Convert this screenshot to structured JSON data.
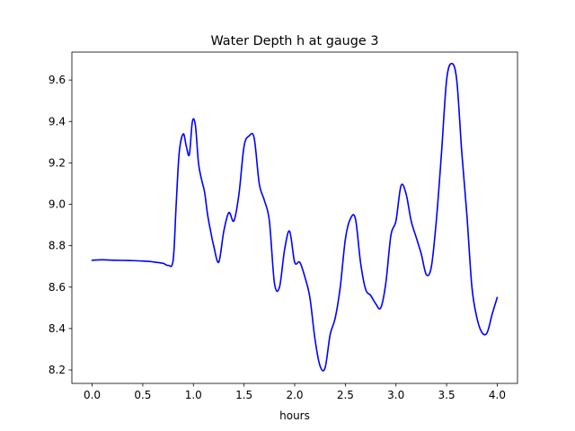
{
  "chart_data": {
    "type": "line",
    "title": "Water Depth h at gauge 3",
    "xlabel": "hours",
    "ylabel": "",
    "xlim": [
      -0.2,
      4.2
    ],
    "ylim": [
      8.135,
      9.735
    ],
    "xticks": [
      0.0,
      0.5,
      1.0,
      1.5,
      2.0,
      2.5,
      3.0,
      3.5,
      4.0
    ],
    "xtick_labels": [
      "0.0",
      "0.5",
      "1.0",
      "1.5",
      "2.0",
      "2.5",
      "3.0",
      "3.5",
      "4.0"
    ],
    "yticks": [
      8.2,
      8.4,
      8.6,
      8.8,
      9.0,
      9.2,
      9.4,
      9.6
    ],
    "ytick_labels": [
      "8.2",
      "8.4",
      "8.6",
      "8.8",
      "9.0",
      "9.2",
      "9.4",
      "9.6"
    ],
    "grid": false,
    "line_color": "#0000ff",
    "series": [
      {
        "x": [
          0.0,
          0.1,
          0.2,
          0.3,
          0.4,
          0.5,
          0.6,
          0.7,
          0.75,
          0.8,
          0.83,
          0.86,
          0.9,
          0.93,
          0.96,
          0.99,
          1.02,
          1.05,
          1.08,
          1.11,
          1.14,
          1.17,
          1.2,
          1.25,
          1.3,
          1.35,
          1.4,
          1.45,
          1.5,
          1.55,
          1.6,
          1.65,
          1.7,
          1.75,
          1.8,
          1.85,
          1.9,
          1.95,
          2.0,
          2.05,
          2.1,
          2.15,
          2.2,
          2.25,
          2.3,
          2.35,
          2.4,
          2.45,
          2.5,
          2.55,
          2.6,
          2.65,
          2.7,
          2.75,
          2.8,
          2.85,
          2.9,
          2.95,
          3.0,
          3.05,
          3.1,
          3.15,
          3.2,
          3.25,
          3.3,
          3.35,
          3.4,
          3.45,
          3.5,
          3.55,
          3.6,
          3.65,
          3.7,
          3.75,
          3.8,
          3.85,
          3.9,
          3.95,
          4.0
        ],
        "y": [
          8.73,
          8.732,
          8.73,
          8.729,
          8.728,
          8.726,
          8.722,
          8.715,
          8.705,
          8.73,
          9.0,
          9.25,
          9.34,
          9.28,
          9.24,
          9.4,
          9.38,
          9.2,
          9.12,
          9.06,
          8.95,
          8.87,
          8.8,
          8.72,
          8.87,
          8.96,
          8.92,
          9.05,
          9.28,
          9.33,
          9.32,
          9.1,
          9.02,
          8.92,
          8.62,
          8.6,
          8.78,
          8.87,
          8.72,
          8.72,
          8.65,
          8.55,
          8.35,
          8.22,
          8.21,
          8.37,
          8.45,
          8.6,
          8.83,
          8.93,
          8.93,
          8.72,
          8.59,
          8.56,
          8.52,
          8.5,
          8.62,
          8.85,
          8.92,
          9.09,
          9.05,
          8.92,
          8.84,
          8.76,
          8.66,
          8.7,
          8.93,
          9.25,
          9.6,
          9.68,
          9.6,
          9.25,
          8.95,
          8.6,
          8.45,
          8.38,
          8.38,
          8.47,
          8.55
        ]
      }
    ]
  }
}
